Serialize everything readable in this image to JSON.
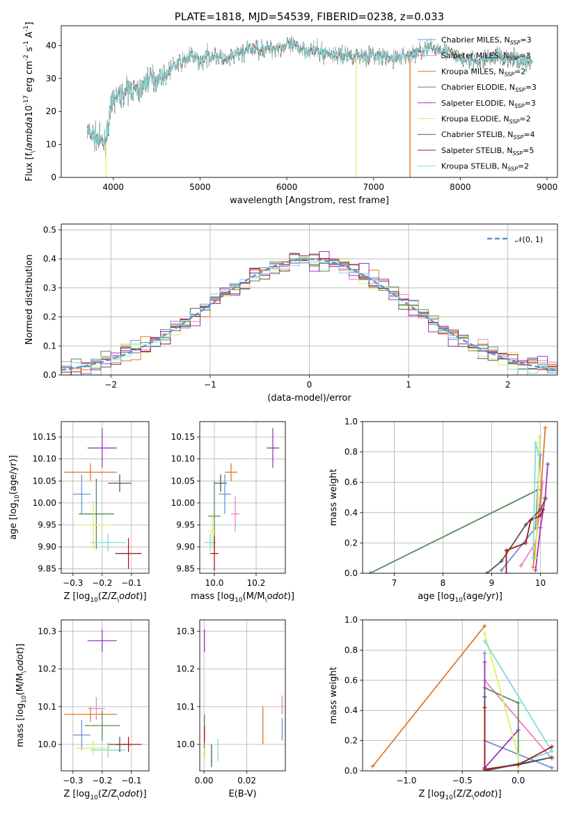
{
  "chart_data": [
    {
      "type": "line",
      "title": "PLATE=1818, MJD=54539, FIBERID=0238, z=0.033",
      "xlabel": "wavelength [Angstrom, rest frame]",
      "ylabel": "Flux [f$_\\lambda$10$^{-17}$ erg cm$^{-2}$ s$^{-1}$ A$^{-1}$]",
      "xlim": [
        3400,
        9120
      ],
      "ylim": [
        0,
        46
      ],
      "xticks": [
        "4000",
        "5000",
        "6000",
        "7000",
        "8000",
        "9000"
      ],
      "yticks": [
        "0",
        "10",
        "20",
        "30",
        "40"
      ],
      "legend_loc": "upper right",
      "series": [
        {
          "name": "Chabrier MILES, N_SSP=3",
          "color": "#6a8fd6"
        },
        {
          "name": "Salpeter MILES, N_SSP=3",
          "color": "#ea82c0"
        },
        {
          "name": "Kroupa MILES, N_SSP=2",
          "color": "#e0792a"
        },
        {
          "name": "Chabrier ELODIE, N_SSP=3",
          "color": "#548a5a"
        },
        {
          "name": "Salpeter ELODIE, N_SSP=3",
          "color": "#9c36b8"
        },
        {
          "name": "Kroupa ELODIE, N_SSP=2",
          "color": "#dff05a"
        },
        {
          "name": "Chabrier STELIB, N_SSP=4",
          "color": "#555555"
        },
        {
          "name": "Salpeter STELIB, N_SSP=5",
          "color": "#a51818"
        },
        {
          "name": "Kroupa STELIB, N_SSP=2",
          "color": "#7ddbdc"
        }
      ],
      "continuum": {
        "x": [
          3700,
          3800,
          3900,
          3950,
          4000,
          4100,
          4200,
          4300,
          4400,
          4500,
          4600,
          4700,
          4800,
          4900,
          5000,
          5100,
          5200,
          5300,
          5400,
          5500,
          5600,
          5800,
          6000,
          6200,
          6400,
          6600,
          6800,
          7000,
          7200,
          7400,
          7600,
          7800,
          8000,
          8200,
          8400,
          8600,
          8800
        ],
        "y": [
          14,
          12,
          10,
          17,
          24,
          25,
          27,
          26,
          30,
          30,
          31,
          34,
          35,
          37,
          35,
          37,
          37,
          35,
          37,
          38,
          39,
          39,
          40,
          39,
          38,
          37,
          37,
          37,
          36,
          37,
          39,
          39,
          36,
          35,
          37,
          36,
          35
        ]
      }
    },
    {
      "type": "line",
      "xlabel": "(data-model)/error",
      "ylabel": "Normed distribution",
      "xlim": [
        -2.5,
        2.5
      ],
      "ylim": [
        0,
        0.52
      ],
      "xticks": [
        "−2",
        "−1",
        "0",
        "1",
        "2"
      ],
      "yticks": [
        "0.0",
        "0.1",
        "0.2",
        "0.3",
        "0.4",
        "0.5"
      ],
      "legend": "𝒩(0, 1)",
      "legend_loc": "upper right",
      "grid": true,
      "reference_curve": {
        "name": "𝒩(0, 1)",
        "color": "#5b8ed6",
        "style": "dashed"
      },
      "bin_width": 0.1
    },
    {
      "type": "scatter",
      "xlabel": "Z [log$_{10}$(Z/Z$_\\odot$)]",
      "ylabel": "age  [log$_{10}$(age/yr)]",
      "xlim": [
        -0.34,
        -0.04
      ],
      "ylim": [
        9.84,
        10.185
      ],
      "xticks": [
        "−0.3",
        "−0.2",
        "−0.1"
      ],
      "yticks": [
        "9.85",
        "9.90",
        "9.95",
        "10.00",
        "10.05",
        "10.10",
        "10.15"
      ],
      "grid": true,
      "points": [
        {
          "x": -0.27,
          "y": 10.02,
          "xerr": 0.03,
          "yerr": 0.045,
          "color": "#6a8fd6"
        },
        {
          "x": -0.2,
          "y": 10.125,
          "xerr": 0.05,
          "yerr": 0.045,
          "color": "#9c36b8"
        },
        {
          "x": -0.24,
          "y": 10.07,
          "xerr": 0.09,
          "yerr": 0.02,
          "color": "#e0792a"
        },
        {
          "x": -0.14,
          "y": 10.045,
          "xerr": 0.04,
          "yerr": 0.02,
          "color": "#555555"
        },
        {
          "x": -0.22,
          "y": 9.975,
          "xerr": 0.06,
          "yerr": 0.08,
          "color": "#548a5a"
        },
        {
          "x": -0.23,
          "y": 9.95,
          "xerr": 0.06,
          "yerr": 0.055,
          "color": "#dff05a"
        },
        {
          "x": -0.18,
          "y": 9.91,
          "xerr": 0.06,
          "yerr": 0.02,
          "color": "#7ddbdc"
        },
        {
          "x": -0.11,
          "y": 9.885,
          "xerr": 0.045,
          "yerr": 0.035,
          "color": "#a51818"
        }
      ]
    },
    {
      "type": "scatter",
      "xlabel": "mass [log$_{10}$(M/M$_\\odot$)]",
      "ylim": [
        9.84,
        10.185
      ],
      "xlim": [
        9.93,
        10.34
      ],
      "xticks": [
        "10.0",
        "10.2"
      ],
      "yticks": [
        "9.85",
        "9.90",
        "9.95",
        "10.00",
        "10.05",
        "10.10",
        "10.15"
      ],
      "grid": true,
      "points": [
        {
          "x": 10.28,
          "y": 10.125,
          "xerr": 0.03,
          "yerr": 0.045,
          "color": "#9c36b8"
        },
        {
          "x": 10.08,
          "y": 10.07,
          "xerr": 0.03,
          "yerr": 0.02,
          "color": "#e0792a"
        },
        {
          "x": 10.03,
          "y": 10.045,
          "xerr": 0.03,
          "yerr": 0.02,
          "color": "#555555"
        },
        {
          "x": 10.05,
          "y": 10.02,
          "xerr": 0.03,
          "yerr": 0.045,
          "color": "#6a8fd6"
        },
        {
          "x": 10.1,
          "y": 9.975,
          "xerr": 0.02,
          "yerr": 0.04,
          "color": "#ea82c0"
        },
        {
          "x": 10.0,
          "y": 9.97,
          "xerr": 0.03,
          "yerr": 0.08,
          "color": "#548a5a"
        },
        {
          "x": 9.99,
          "y": 9.935,
          "xerr": 0.02,
          "yerr": 0.04,
          "color": "#dff05a"
        },
        {
          "x": 9.98,
          "y": 9.91,
          "xerr": 0.03,
          "yerr": 0.02,
          "color": "#7ddbdc"
        },
        {
          "x": 10.0,
          "y": 9.885,
          "xerr": 0.02,
          "yerr": 0.04,
          "color": "#a51818"
        }
      ]
    },
    {
      "type": "line",
      "xlabel": "age  [log$_{10}$(age/yr)]",
      "ylabel": "mass weight",
      "xlim": [
        6.35,
        10.35
      ],
      "ylim": [
        0,
        1.0
      ],
      "xticks": [
        "7",
        "8",
        "9",
        "10"
      ],
      "yticks": [
        "0.0",
        "0.2",
        "0.4",
        "0.6",
        "0.8",
        "1.0"
      ],
      "grid": true,
      "series": [
        {
          "color": "#548a5a",
          "x": [
            6.5,
            9.95
          ],
          "y": [
            0.0,
            0.55
          ]
        },
        {
          "color": "#6a8fd6",
          "x": [
            9.2,
            9.9,
            9.95,
            10.0
          ],
          "y": [
            0.02,
            0.3,
            0.6,
            0.78
          ]
        },
        {
          "color": "#ea82c0",
          "x": [
            9.6,
            9.9,
            10.0,
            10.05
          ],
          "y": [
            0.05,
            0.2,
            0.45,
            0.6
          ]
        },
        {
          "color": "#e0792a",
          "x": [
            9.85,
            10.0,
            10.1
          ],
          "y": [
            0.04,
            0.5,
            0.96
          ]
        },
        {
          "color": "#9c36b8",
          "x": [
            9.9,
            10.0,
            10.1,
            10.15
          ],
          "y": [
            0.02,
            0.3,
            0.5,
            0.72
          ]
        },
        {
          "color": "#dff05a",
          "x": [
            9.9,
            9.95,
            9.98
          ],
          "y": [
            0.1,
            0.5,
            0.9
          ]
        },
        {
          "color": "#555555",
          "x": [
            8.9,
            9.2,
            9.7,
            10.0,
            10.1
          ],
          "y": [
            0.0,
            0.08,
            0.32,
            0.42,
            0.49
          ]
        },
        {
          "color": "#a51818",
          "x": [
            9.3,
            9.3,
            9.7,
            9.8,
            10.0,
            10.05
          ],
          "y": [
            0.0,
            0.15,
            0.2,
            0.35,
            0.38,
            0.42
          ]
        },
        {
          "color": "#7ddbdc",
          "x": [
            9.85,
            9.9,
            9.97
          ],
          "y": [
            0.1,
            0.86,
            0.78
          ]
        }
      ]
    },
    {
      "type": "scatter",
      "xlabel": "Z [log$_{10}$(Z/Z$_\\odot$)]",
      "ylabel": "mass [log$_{10}$(M/M$_\\odot$)]",
      "xlim": [
        -0.34,
        -0.04
      ],
      "ylim": [
        9.93,
        10.33
      ],
      "xticks": [
        "−0.3",
        "−0.2",
        "−0.1"
      ],
      "yticks": [
        "10.0",
        "10.1",
        "10.2",
        "10.3"
      ],
      "grid": true,
      "points": [
        {
          "x": -0.2,
          "y": 10.275,
          "xerr": 0.05,
          "yerr": 0.03,
          "color": "#9c36b8"
        },
        {
          "x": -0.24,
          "y": 10.08,
          "xerr": 0.09,
          "yerr": 0.02,
          "color": "#e0792a"
        },
        {
          "x": -0.22,
          "y": 10.095,
          "xerr": 0.03,
          "yerr": 0.03,
          "color": "#ea82c0"
        },
        {
          "x": -0.2,
          "y": 10.05,
          "xerr": 0.06,
          "yerr": 0.04,
          "color": "#548a5a"
        },
        {
          "x": -0.27,
          "y": 10.025,
          "xerr": 0.03,
          "yerr": 0.04,
          "color": "#6a8fd6"
        },
        {
          "x": -0.23,
          "y": 9.99,
          "xerr": 0.06,
          "yerr": 0.02,
          "color": "#dff05a"
        },
        {
          "x": -0.18,
          "y": 9.985,
          "xerr": 0.06,
          "yerr": 0.02,
          "color": "#7ddbdc"
        },
        {
          "x": -0.14,
          "y": 10.0,
          "xerr": 0.04,
          "yerr": 0.02,
          "color": "#555555"
        },
        {
          "x": -0.11,
          "y": 10.0,
          "xerr": 0.045,
          "yerr": 0.02,
          "color": "#a51818"
        }
      ]
    },
    {
      "type": "scatter",
      "xlabel": "E(B-V)",
      "xlim": [
        -0.002,
        0.038
      ],
      "ylim": [
        9.93,
        10.33
      ],
      "xticks": [
        "0.00",
        "0.02"
      ],
      "yticks": [
        "10.0",
        "10.1",
        "10.2",
        "10.3"
      ],
      "grid": true,
      "points": [
        {
          "x": 0.0002,
          "y": 10.275,
          "xerr": 0.0,
          "yerr": 0.03,
          "color": "#9c36b8"
        },
        {
          "x": 0.0002,
          "y": 10.05,
          "xerr": 0.0,
          "yerr": 0.03,
          "color": "#548a5a"
        },
        {
          "x": 0.0002,
          "y": 10.02,
          "xerr": 0.0,
          "yerr": 0.03,
          "color": "#a51818"
        },
        {
          "x": 0.0004,
          "y": 9.985,
          "xerr": 0.0,
          "yerr": 0.02,
          "color": "#dff05a"
        },
        {
          "x": 0.0035,
          "y": 9.97,
          "xerr": 0.0,
          "yerr": 0.03,
          "color": "#555555"
        },
        {
          "x": 0.0065,
          "y": 9.985,
          "xerr": 0.0,
          "yerr": 0.03,
          "color": "#7ddbdc"
        },
        {
          "x": 0.0275,
          "y": 10.05,
          "xerr": 0.0,
          "yerr": 0.05,
          "color": "#e0792a"
        },
        {
          "x": 0.0365,
          "y": 10.04,
          "xerr": 0.0,
          "yerr": 0.03,
          "color": "#6a8fd6"
        },
        {
          "x": 0.0365,
          "y": 10.105,
          "xerr": 0.0,
          "yerr": 0.025,
          "color": "#ea82c0"
        }
      ]
    },
    {
      "type": "line",
      "xlabel": "Z [log$_{10}$(Z/Z$_\\odot$)]",
      "ylabel": "mass weight",
      "xlim": [
        -1.39,
        0.35
      ],
      "ylim": [
        0,
        1.0
      ],
      "xticks": [
        "−1.0",
        "−0.5",
        "0.0"
      ],
      "yticks": [
        "0.0",
        "0.2",
        "0.4",
        "0.6",
        "0.8",
        "1.0"
      ],
      "grid": true,
      "series": [
        {
          "color": "#e0792a",
          "x": [
            -1.3,
            -0.3
          ],
          "y": [
            0.03,
            0.96
          ]
        },
        {
          "color": "#6a8fd6",
          "x": [
            -0.3,
            -0.3,
            0.3
          ],
          "y": [
            0.78,
            0.2,
            0.02
          ]
        },
        {
          "color": "#ea82c0",
          "x": [
            -0.3,
            0.3
          ],
          "y": [
            0.6,
            0.08
          ]
        },
        {
          "color": "#548a5a",
          "x": [
            -0.3,
            0.0,
            0.0
          ],
          "y": [
            0.55,
            0.45,
            0.0
          ]
        },
        {
          "color": "#9c36b8",
          "x": [
            -0.3,
            -0.3,
            0.0,
            -0.3
          ],
          "y": [
            0.72,
            0.02,
            0.27,
            0.02
          ]
        },
        {
          "color": "#dff05a",
          "x": [
            -0.3,
            0.0,
            0.0
          ],
          "y": [
            0.91,
            0.1,
            0.0
          ]
        },
        {
          "color": "#7ddbdc",
          "x": [
            -0.3,
            0.3,
            0.0,
            -0.3
          ],
          "y": [
            0.86,
            0.13,
            0.05,
            0.01
          ]
        },
        {
          "color": "#555555",
          "x": [
            -0.3,
            -0.3,
            0.3,
            0.0
          ],
          "y": [
            0.49,
            0.0,
            0.09,
            0.04
          ]
        },
        {
          "color": "#a51818",
          "x": [
            -0.3,
            -0.3,
            0.0,
            0.3
          ],
          "y": [
            0.42,
            0.01,
            0.04,
            0.16
          ]
        }
      ]
    }
  ]
}
